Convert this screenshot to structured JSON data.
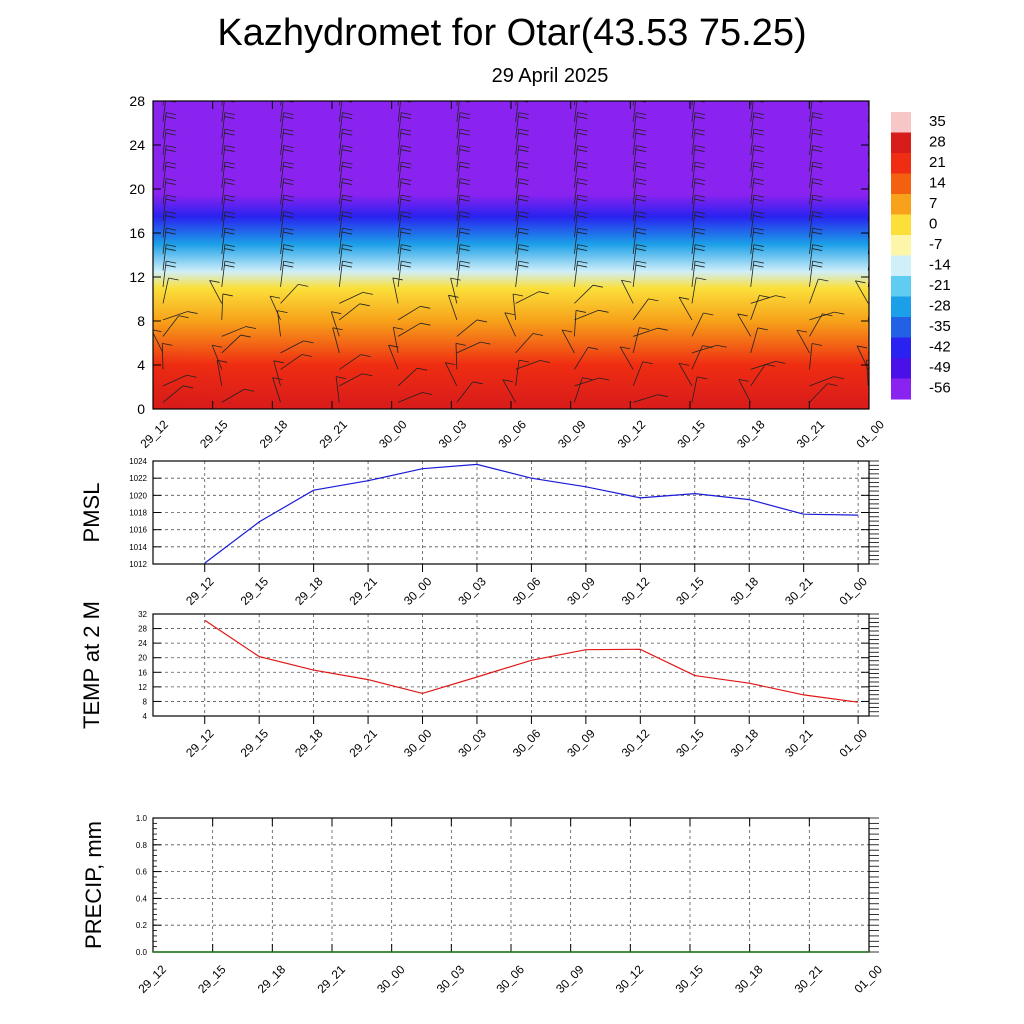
{
  "header": {
    "title": "Kazhydromet for Otar(43.53 75.25)",
    "subtitle": "29 April 2025"
  },
  "chart_data": [
    {
      "type": "heatmap",
      "name": "temperature-cross-section",
      "x_labels": [
        "29_12",
        "29_15",
        "29_18",
        "29_21",
        "30_00",
        "30_03",
        "30_06",
        "30_09",
        "30_12",
        "30_15",
        "30_18",
        "30_21",
        "01_00"
      ],
      "y_ticks": [
        0,
        4,
        8,
        12,
        16,
        20,
        24,
        28
      ],
      "ylim": [
        0,
        28
      ],
      "colorbar": {
        "labels": [
          35,
          28,
          21,
          14,
          7,
          0,
          -7,
          -14,
          -21,
          -28,
          -35,
          -42,
          -49,
          -56
        ],
        "colors": {
          "35": "#f7c6c6",
          "28": "#d81b1b",
          "21": "#ef2d12",
          "14": "#f3600f",
          "7": "#f7a21a",
          "0": "#fbe03a",
          "-7": "#fdf6a8",
          "-14": "#cfeff9",
          "-21": "#5fcdf2",
          "-28": "#1b9fe8",
          "-35": "#2260e6",
          "-42": "#2a22f0",
          "-49": "#4a10e8",
          "-56": "#8a22f0"
        }
      },
      "temperature_profile": [
        {
          "z": 0,
          "t": 28
        },
        {
          "z": 4,
          "t": 18
        },
        {
          "z": 8,
          "t": 8
        },
        {
          "z": 11,
          "t": 0
        },
        {
          "z": 12.5,
          "t": -14
        },
        {
          "z": 15,
          "t": -28
        },
        {
          "z": 17.5,
          "t": -42
        },
        {
          "z": 19.5,
          "t": -56
        },
        {
          "z": 28,
          "t": -58
        }
      ],
      "wind_barbs": true
    },
    {
      "type": "line",
      "name": "pmsl",
      "ylabel": "PMSL",
      "categories": [
        "29_12",
        "29_15",
        "29_18",
        "29_21",
        "30_00",
        "30_03",
        "30_06",
        "30_09",
        "30_12",
        "30_15",
        "30_18",
        "30_21",
        "01_00"
      ],
      "ylim": [
        1012,
        1024
      ],
      "y_ticks": [
        1012,
        1014,
        1016,
        1018,
        1020,
        1022,
        1024
      ],
      "series": [
        {
          "values": [
            1012.1,
            1016.9,
            1020.6,
            1021.7,
            1023.1,
            1023.6,
            1022.0,
            1021.0,
            1019.7,
            1020.2,
            1019.5,
            1017.8,
            1017.7
          ],
          "color": "#1a1ad6"
        }
      ],
      "grid": true
    },
    {
      "type": "line",
      "name": "temp-2m",
      "ylabel": "TEMP at 2 M",
      "categories": [
        "29_12",
        "29_15",
        "29_18",
        "29_21",
        "30_00",
        "30_03",
        "30_06",
        "30_09",
        "30_12",
        "30_15",
        "30_18",
        "30_21",
        "01_00"
      ],
      "ylim": [
        4,
        32
      ],
      "y_ticks": [
        4,
        8,
        12,
        16,
        20,
        24,
        28,
        32
      ],
      "series": [
        {
          "values": [
            30.3,
            20.3,
            16.6,
            14.0,
            10.2,
            14.7,
            19.3,
            22.2,
            22.3,
            15.1,
            13.0,
            9.8,
            7.8
          ],
          "color": "#e01616"
        }
      ],
      "grid": true
    },
    {
      "type": "line",
      "name": "precip",
      "ylabel": "PRECIP, mm",
      "categories": [
        "29_12",
        "29_15",
        "29_18",
        "29_21",
        "30_00",
        "30_03",
        "30_06",
        "30_09",
        "30_12",
        "30_15",
        "30_18",
        "30_21",
        "01_00"
      ],
      "ylim": [
        0.0,
        1.0
      ],
      "y_ticks": [
        "0.0",
        "0.2",
        "0.4",
        "0.6",
        "0.8",
        "1.0"
      ],
      "series": [
        {
          "values": [
            0,
            0,
            0,
            0,
            0,
            0,
            0,
            0,
            0,
            0,
            0,
            0,
            0
          ],
          "color": "#1a7a1a"
        }
      ],
      "grid": true
    }
  ]
}
